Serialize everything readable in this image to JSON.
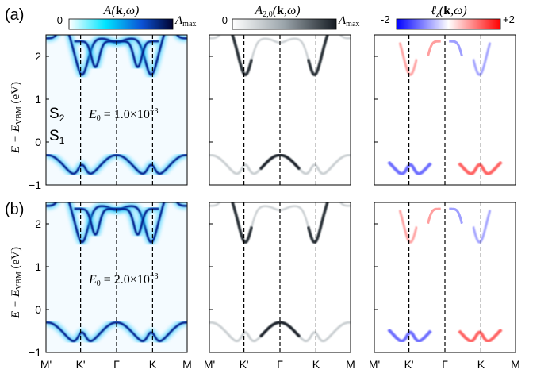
{
  "panel_labels": {
    "a": "(a)",
    "b": "(b)"
  },
  "colorbars": [
    {
      "title": "A(k,ω)",
      "min_label": "0",
      "max_label": "A",
      "max_sub": "max",
      "colors": [
        "#ffffff",
        "#00e5ff",
        "#0b52d6",
        "#00022e"
      ]
    },
    {
      "title": "A2,0(k,ω)",
      "min_label": "0",
      "max_label": "A",
      "max_sub": "max",
      "colors": [
        "#ffffff",
        "#9aa4aa",
        "#151b22"
      ]
    },
    {
      "title": "ℓz(k,ω)",
      "min_label": "-2",
      "max_label": "+2",
      "colors": [
        "#0000ff",
        "#ffffff",
        "#ff0000"
      ]
    }
  ],
  "axes": {
    "ylabel_main": "E − E",
    "ylabel_sub": "VBM",
    "ylabel_unit": " (eV)",
    "yticks": [
      "2",
      "1",
      "0",
      "−1"
    ],
    "xticks": [
      "M'",
      "K'",
      "Γ",
      "K",
      "M"
    ]
  },
  "annotations": {
    "s2": "S",
    "s2_sub": "2",
    "s1": "S",
    "s1_sub": "1",
    "e0_a": "E0 = 1.0×10−3",
    "e0_b": "E0 = 2.0×10−3"
  },
  "chart_data": {
    "type": "heatmap",
    "x": [
      "M'",
      "K'",
      "Γ",
      "K",
      "M"
    ],
    "ylim": [
      -1,
      2.5
    ],
    "rows": [
      {
        "panel": "(a)",
        "E0": "1.0×10−3"
      },
      {
        "panel": "(b)",
        "E0": "2.0×10−3"
      }
    ],
    "columns": [
      "A(k,ω)",
      "A2,0(k,ω)",
      "ℓz(k,ω)"
    ]
  }
}
